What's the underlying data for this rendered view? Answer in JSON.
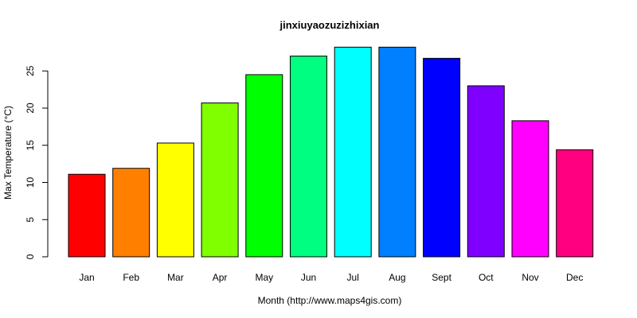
{
  "chart_data": {
    "type": "bar",
    "title": "jinxiuyaozuzizhixian",
    "xlabel": "Month (http://www.maps4gis.com)",
    "ylabel": "Max Temperature (°C)",
    "categories": [
      "Jan",
      "Feb",
      "Mar",
      "Apr",
      "May",
      "Jun",
      "Jul",
      "Aug",
      "Sept",
      "Oct",
      "Nov",
      "Dec"
    ],
    "values": [
      11.1,
      11.9,
      15.3,
      20.7,
      24.5,
      27.0,
      28.2,
      28.2,
      26.7,
      23.0,
      18.3,
      14.4
    ],
    "colors": [
      "#FF0000",
      "#FF8000",
      "#FFFF00",
      "#80FF00",
      "#00FF00",
      "#00FF80",
      "#00FFFF",
      "#0080FF",
      "#0000FF",
      "#8000FF",
      "#FF00FF",
      "#FF0080"
    ],
    "yticks": [
      0,
      5,
      10,
      15,
      20,
      25
    ],
    "ylim": [
      0,
      28.2
    ],
    "grid": false,
    "legend": "none"
  }
}
